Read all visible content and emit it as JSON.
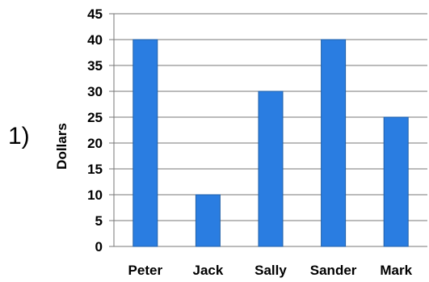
{
  "problem_number": "1)",
  "chart_data": {
    "type": "bar",
    "categories": [
      "Peter",
      "Jack",
      "Sally",
      "Sander",
      "Mark"
    ],
    "values": [
      40,
      10,
      30,
      40,
      25
    ],
    "title": "",
    "xlabel": "",
    "ylabel": "Dollars",
    "ylim": [
      0,
      45
    ],
    "yticks": [
      "0",
      "5",
      "10",
      "15",
      "20",
      "25",
      "30",
      "35",
      "40",
      "45"
    ],
    "grid": true,
    "bar_color": "#2a7de1",
    "bar_edge_color": "#1f5fa8",
    "grid_color": "#777777"
  }
}
